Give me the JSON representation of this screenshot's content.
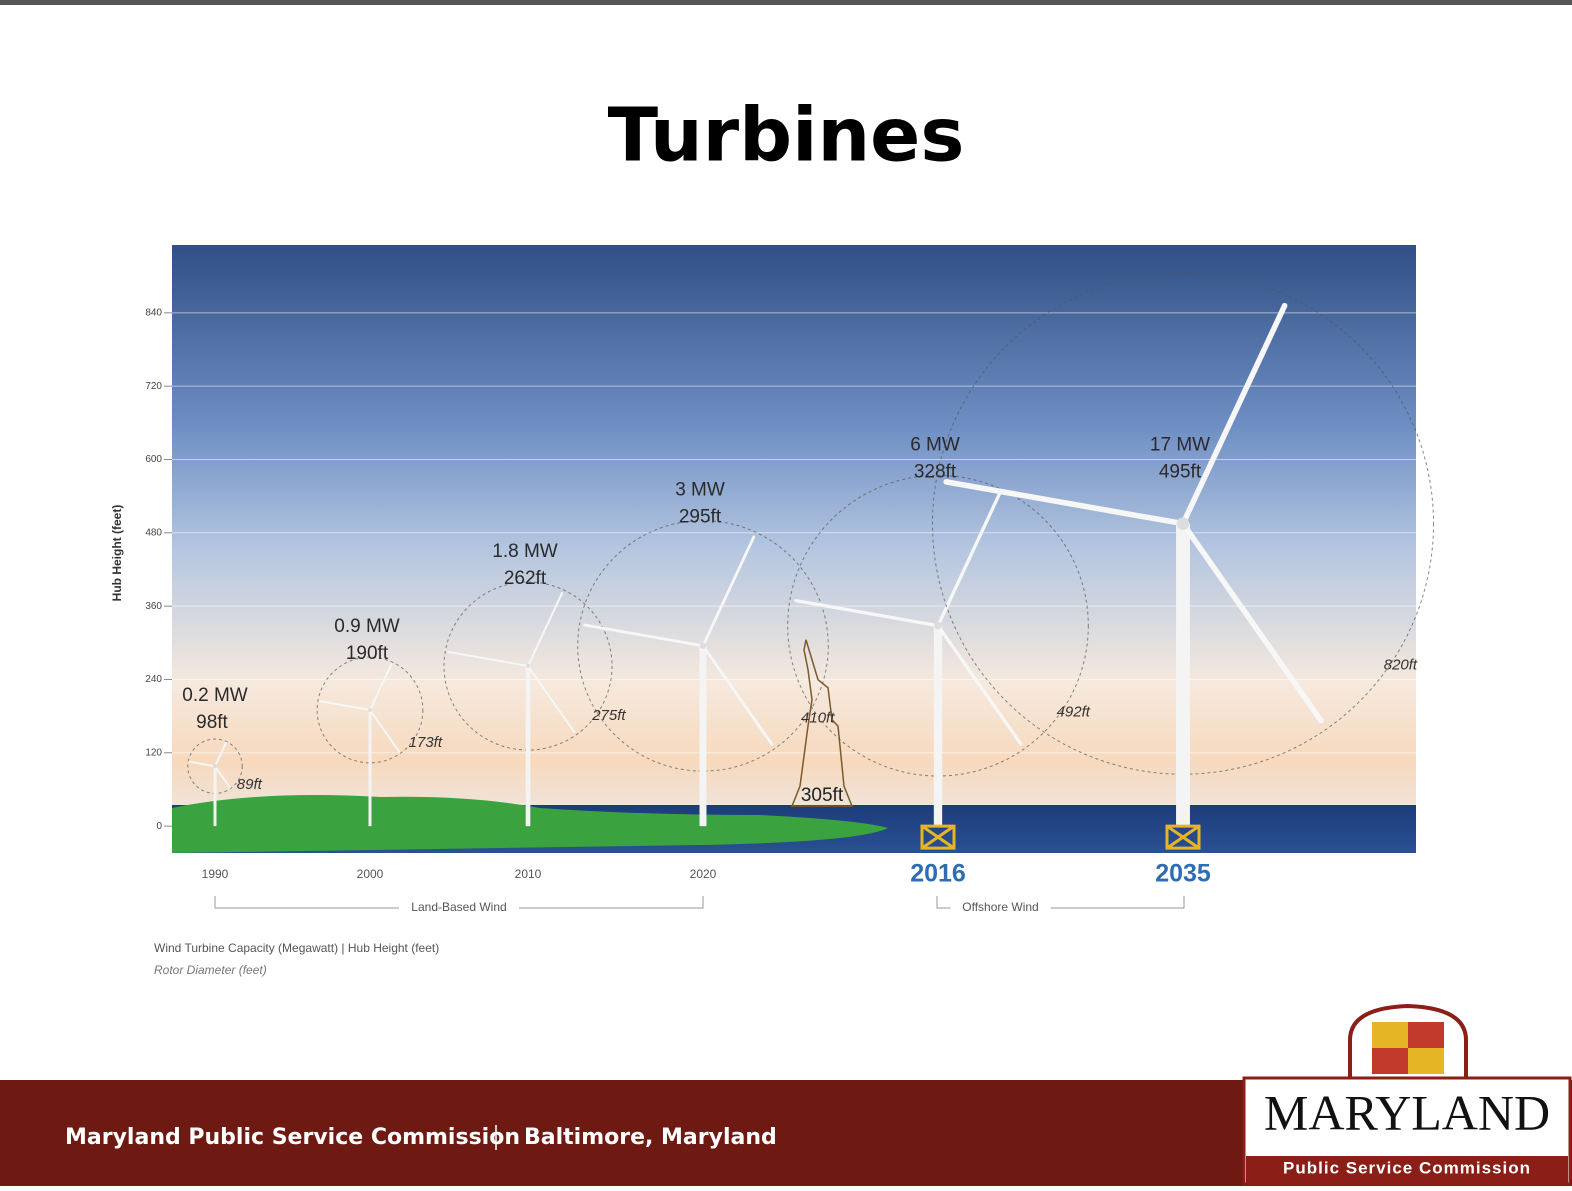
{
  "slide": {
    "title": "Turbines",
    "footer_left": "Maryland Public Service Commission",
    "footer_right": "Baltimore, Maryland",
    "logo_title": "MARYLAND",
    "logo_subtitle": "Public Service Commission"
  },
  "chart_data": {
    "type": "turbine",
    "ylabel": "Hub Height (feet)",
    "categories": [
      "1990",
      "2000",
      "2010",
      "2020",
      "2016",
      "2035"
    ],
    "values": [
      98,
      190,
      262,
      295,
      328,
      495
    ],
    "value_labels": [
      "98ft",
      "190ft",
      "262ft",
      "295ft",
      "328ft",
      "495ft"
    ],
    "capacity": [
      0.2,
      0.9,
      1.8,
      3,
      6,
      17
    ],
    "capacity_labels": [
      "0.2 MW",
      "0.9 MW",
      "1.8 MW",
      "3 MW",
      "6 MW",
      "17 MW"
    ],
    "rotor_diameter": [
      89,
      173,
      275,
      410,
      492,
      820
    ],
    "rotor_labels": [
      "89ft",
      "173ft",
      "275ft",
      "410ft",
      "492ft",
      "820ft"
    ],
    "landmark": {
      "value": 305,
      "label": "305ft"
    },
    "groups": [
      "Land-Based Wind",
      "Offshore Wind"
    ],
    "notes": [
      "Wind Turbine Capacity (Megawatt) | Hub Height (feet)",
      "Rotor Diameter (feet)"
    ],
    "ylim": [
      -44,
      951
    ],
    "yticks": [
      0,
      120,
      240,
      360,
      480,
      600,
      720,
      840
    ],
    "grid": true
  }
}
